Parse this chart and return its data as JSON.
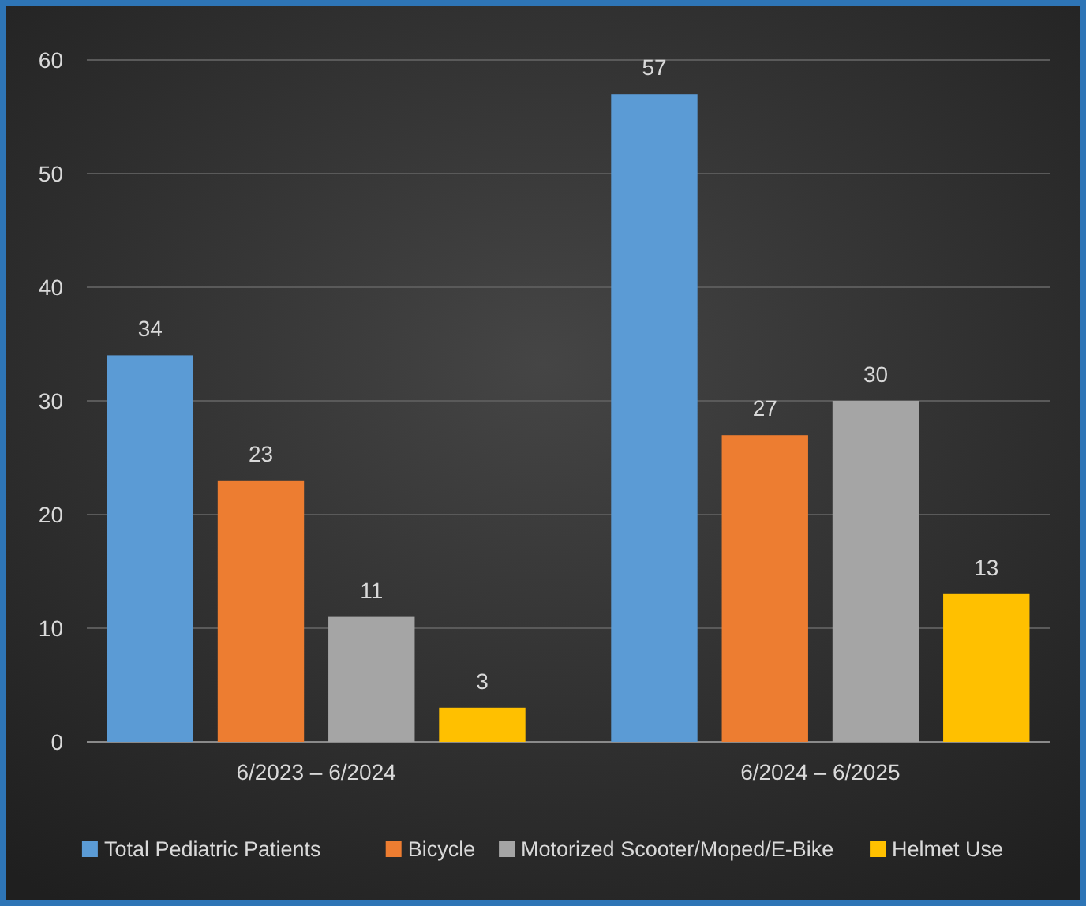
{
  "chart_data": {
    "type": "bar",
    "categories": [
      "6/2023 – 6/2024",
      "6/2024 – 6/2025"
    ],
    "series": [
      {
        "name": "Total Pediatric Patients",
        "color": "#5b9bd5",
        "values": [
          34,
          57
        ]
      },
      {
        "name": "Bicycle",
        "color": "#ed7d31",
        "values": [
          23,
          27
        ]
      },
      {
        "name": "Motorized Scooter/Moped/E-Bike",
        "color": "#a5a5a5",
        "values": [
          11,
          30
        ]
      },
      {
        "name": "Helmet Use",
        "color": "#ffc000",
        "values": [
          3,
          13
        ]
      }
    ],
    "ylim": [
      0,
      60
    ],
    "yticks": [
      0,
      10,
      20,
      30,
      40,
      50,
      60
    ],
    "grid": "y",
    "legend": "bottom",
    "data_labels": true
  }
}
